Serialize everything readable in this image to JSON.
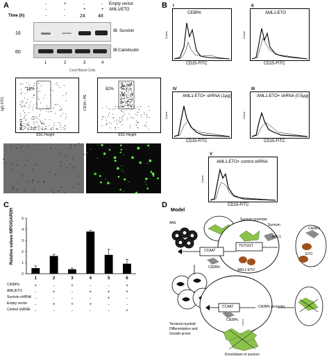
{
  "panels": {
    "A": "A",
    "B": "B",
    "C": "C",
    "D": "D"
  },
  "panelA": {
    "header_rows": [
      {
        "label": "Empty vector",
        "marks": [
          "-",
          "+",
          "-",
          "-"
        ]
      },
      {
        "label": "AML1/ETO",
        "marks": [
          "-",
          "-",
          "+",
          "+"
        ]
      }
    ],
    "time_label": "Time (h)",
    "time_values": [
      "-",
      "-",
      "24",
      "48"
    ],
    "marker_16": "16",
    "marker_60": "60",
    "ib_survivin": "IB: Survivin",
    "ib_calreticulin": "IB:Calreticulin",
    "lanes": [
      "1",
      "2",
      "3",
      "4"
    ],
    "cord": "Cord Blood Cells",
    "flow_left_pct": "18%",
    "flow_right_pct": "82%",
    "flow_left_ylabel": "IgG FITC",
    "flow_right_ylabel": "CD34+ PE",
    "flow_xlabel": "SSC-Height"
  },
  "panelB": {
    "plots": [
      {
        "roman": "I",
        "title": "CEBPA",
        "xlabel": "CD15-FITC",
        "ylabel": "Count"
      },
      {
        "roman": "II",
        "title": "AML1-ETO",
        "xlabel": "CD15-FITC",
        "ylabel": "Count"
      },
      {
        "roman": "IV",
        "title": "AML1-ETO+ shRNA (1μg)",
        "xlabel": "CD15-FITC",
        "ylabel": "Count"
      },
      {
        "roman": "III",
        "title": "AML1-ETO+ shRNA (0.5μg)",
        "xlabel": "CD15-FITC",
        "ylabel": "Count"
      },
      {
        "roman": "V",
        "title": "AML1-ETO+ control shRNA",
        "xlabel": "CD15-FITC",
        "ylabel": "Count"
      }
    ]
  },
  "panelC": {
    "ylabel": "Relative values MPO/GAPDH",
    "row_labels": [
      "C/EBPα",
      "AML/ETO",
      "Survivin shRNA",
      "Empty vector",
      "Control shRNA"
    ],
    "marks": [
      [
        "+",
        "-",
        "+",
        "-",
        "-",
        "+"
      ],
      [
        "-",
        "+",
        "-",
        "+",
        "+",
        "+"
      ],
      [
        "-",
        "-",
        "-",
        "-",
        "+",
        "-"
      ],
      [
        "-",
        "+",
        "+",
        "+",
        "-",
        "-"
      ],
      [
        "-",
        "-",
        "-",
        "-",
        "-",
        "+"
      ]
    ],
    "chart_data": {
      "type": "bar",
      "categories": [
        "1",
        "2",
        "3",
        "4",
        "5",
        "6"
      ],
      "values": [
        0.5,
        1.6,
        0.4,
        3.8,
        1.7,
        0.9
      ],
      "errors": [
        0.2,
        0.15,
        0.1,
        0.1,
        0.5,
        0.4
      ],
      "yticks": [
        "0",
        "1",
        "2",
        "3",
        "4",
        "5"
      ],
      "ylim": [
        0,
        5
      ]
    }
  },
  "panelD": {
    "title": "Model",
    "aml": "AML",
    "survivin_promoter": "Survivin promoter",
    "survivin": "Survivin",
    "ccaat": "CCAAT",
    "tgtggt": "TGTGGT",
    "aml1": "AML1",
    "eto": "ETO",
    "cebpe": "C/EBPε",
    "aml1eto": "AML1-ETO",
    "ccaat2": "CCAAT",
    "cebpe_promoter": "C/EBPε promoter",
    "cebpe2": "C/EBPε",
    "cebpe3": "C/EBPε",
    "terminal1": "Terminal myeloid",
    "terminal2": "Differentiation and",
    "terminal3": "Growth arrest",
    "knockdown": "Knockdown of survivin"
  }
}
